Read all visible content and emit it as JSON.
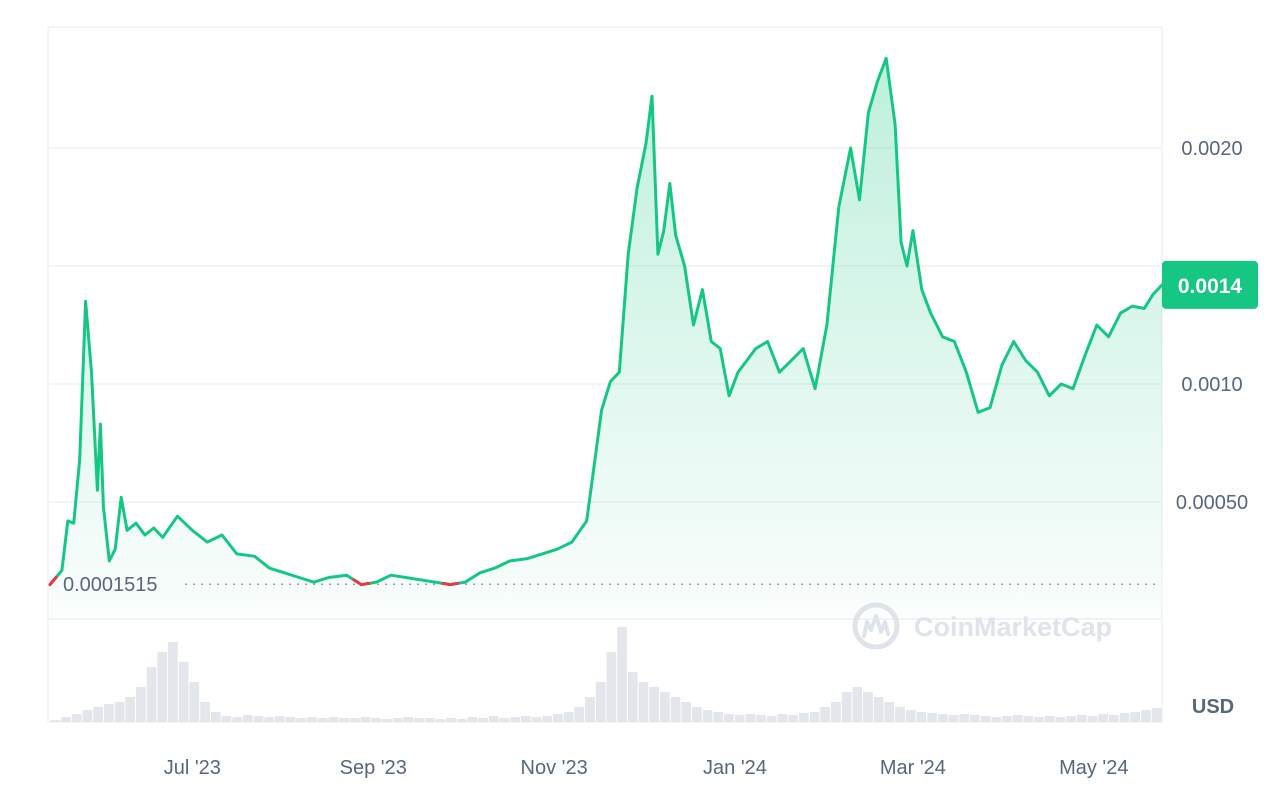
{
  "chart_data": {
    "type": "area",
    "xlabel": "",
    "ylabel": "",
    "x_ticks": [
      "Jul '23",
      "Sep '23",
      "Nov '23",
      "Jan '24",
      "Mar '24",
      "May '24"
    ],
    "y_ticks": [
      "0.0020",
      "0.0010",
      "0.00050"
    ],
    "ylim": [
      0,
      0.0025
    ],
    "grid": true,
    "line_color": "#16c784",
    "down_color": "#ea3943",
    "current_price_label": "0.0014",
    "current_price": 0.00142,
    "baseline_label": "0.0001515",
    "baseline_price": 0.0001515,
    "currency": "USD",
    "watermark": "CoinMarketCap",
    "series": [
      {
        "x": [
          "2023-05-28",
          "2023-06-01",
          "2023-06-03",
          "2023-06-05",
          "2023-06-07",
          "2023-06-09",
          "2023-06-11",
          "2023-06-13",
          "2023-06-14",
          "2023-06-15",
          "2023-06-17",
          "2023-06-19",
          "2023-06-21",
          "2023-06-23",
          "2023-06-26",
          "2023-06-29",
          "2023-07-02",
          "2023-07-05",
          "2023-07-10",
          "2023-07-15",
          "2023-07-20",
          "2023-07-25",
          "2023-07-30",
          "2023-08-05",
          "2023-08-10",
          "2023-08-15",
          "2023-08-20",
          "2023-08-25",
          "2023-08-30",
          "2023-09-05",
          "2023-09-10",
          "2023-09-15",
          "2023-09-20",
          "2023-09-25",
          "2023-09-30",
          "2023-10-05",
          "2023-10-10",
          "2023-10-15",
          "2023-10-20",
          "2023-10-25",
          "2023-10-30",
          "2023-11-05",
          "2023-11-10",
          "2023-11-15",
          "2023-11-20",
          "2023-11-25",
          "2023-11-30",
          "2023-12-03",
          "2023-12-06",
          "2023-12-09",
          "2023-12-12",
          "2023-12-15",
          "2023-12-17",
          "2023-12-19",
          "2023-12-21",
          "2023-12-23",
          "2023-12-25",
          "2023-12-28",
          "2023-12-31",
          "2024-01-03",
          "2024-01-06",
          "2024-01-09",
          "2024-01-12",
          "2024-01-15",
          "2024-01-18",
          "2024-01-21",
          "2024-01-25",
          "2024-01-29",
          "2024-02-02",
          "2024-02-06",
          "2024-02-10",
          "2024-02-14",
          "2024-02-18",
          "2024-02-22",
          "2024-02-25",
          "2024-02-28",
          "2024-03-02",
          "2024-03-05",
          "2024-03-08",
          "2024-03-10",
          "2024-03-12",
          "2024-03-14",
          "2024-03-17",
          "2024-03-20",
          "2024-03-24",
          "2024-03-28",
          "2024-04-01",
          "2024-04-05",
          "2024-04-09",
          "2024-04-13",
          "2024-04-17",
          "2024-04-21",
          "2024-04-25",
          "2024-04-29",
          "2024-05-03",
          "2024-05-07",
          "2024-05-11",
          "2024-05-15",
          "2024-05-19",
          "2024-05-23",
          "2024-05-27",
          "2024-05-31",
          "2024-06-03",
          "2024-06-06"
        ],
        "values": [
          0.00015,
          0.00021,
          0.00042,
          0.00041,
          0.00068,
          0.00135,
          0.00105,
          0.00055,
          0.00083,
          0.00048,
          0.00025,
          0.0003,
          0.00052,
          0.00038,
          0.00041,
          0.00036,
          0.00039,
          0.00035,
          0.00044,
          0.00038,
          0.00033,
          0.00036,
          0.00028,
          0.00027,
          0.00022,
          0.0002,
          0.00018,
          0.00016,
          0.00018,
          0.00019,
          0.00015,
          0.00016,
          0.00019,
          0.00018,
          0.00017,
          0.00016,
          0.00015,
          0.00016,
          0.0002,
          0.00022,
          0.00025,
          0.00026,
          0.00028,
          0.0003,
          0.00033,
          0.00042,
          0.00089,
          0.00101,
          0.00105,
          0.00155,
          0.00183,
          0.00202,
          0.00222,
          0.00155,
          0.00165,
          0.00185,
          0.00163,
          0.0015,
          0.00125,
          0.0014,
          0.00118,
          0.00115,
          0.00095,
          0.00105,
          0.0011,
          0.00115,
          0.00118,
          0.00105,
          0.0011,
          0.00115,
          0.00098,
          0.00125,
          0.00175,
          0.002,
          0.00178,
          0.00215,
          0.00228,
          0.00238,
          0.0021,
          0.0016,
          0.0015,
          0.00165,
          0.0014,
          0.0013,
          0.0012,
          0.00118,
          0.00105,
          0.00088,
          0.0009,
          0.00108,
          0.00118,
          0.0011,
          0.00105,
          0.00095,
          0.001,
          0.00098,
          0.00112,
          0.00125,
          0.0012,
          0.0013,
          0.00133,
          0.00132,
          0.00138,
          0.00142
        ]
      }
    ],
    "volume": [
      0.02,
      0.05,
      0.08,
      0.12,
      0.15,
      0.18,
      0.2,
      0.25,
      0.35,
      0.55,
      0.7,
      0.8,
      0.6,
      0.4,
      0.2,
      0.1,
      0.06,
      0.05,
      0.07,
      0.06,
      0.05,
      0.06,
      0.05,
      0.04,
      0.05,
      0.04,
      0.05,
      0.04,
      0.04,
      0.05,
      0.04,
      0.03,
      0.04,
      0.05,
      0.04,
      0.04,
      0.03,
      0.04,
      0.03,
      0.05,
      0.04,
      0.06,
      0.04,
      0.05,
      0.06,
      0.05,
      0.06,
      0.08,
      0.1,
      0.15,
      0.25,
      0.4,
      0.7,
      0.95,
      0.5,
      0.4,
      0.35,
      0.3,
      0.25,
      0.2,
      0.15,
      0.12,
      0.1,
      0.08,
      0.07,
      0.08,
      0.07,
      0.06,
      0.08,
      0.07,
      0.09,
      0.1,
      0.15,
      0.2,
      0.3,
      0.35,
      0.3,
      0.25,
      0.2,
      0.15,
      0.12,
      0.1,
      0.09,
      0.08,
      0.07,
      0.08,
      0.07,
      0.06,
      0.05,
      0.06,
      0.07,
      0.06,
      0.05,
      0.06,
      0.05,
      0.06,
      0.07,
      0.06,
      0.08,
      0.07,
      0.09,
      0.1,
      0.12,
      0.14
    ]
  }
}
